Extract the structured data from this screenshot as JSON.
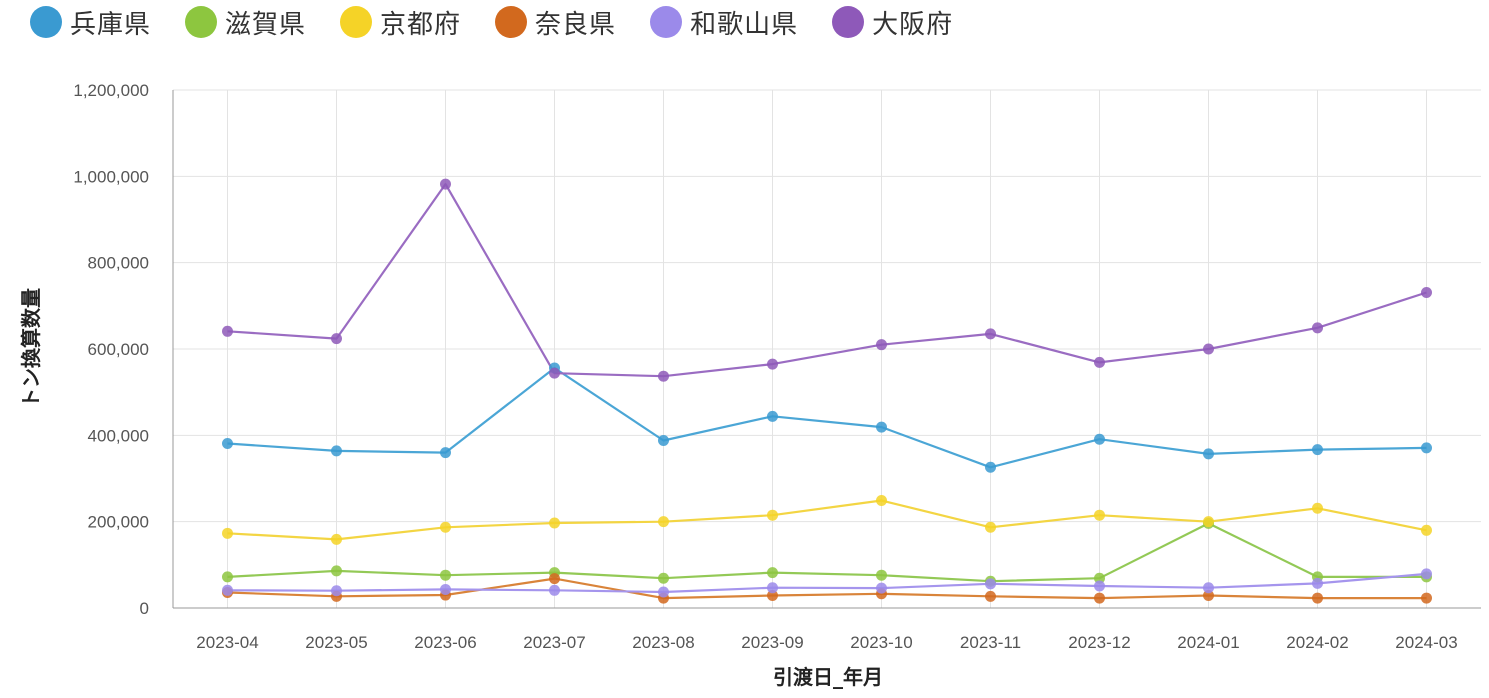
{
  "chart_data": {
    "type": "line",
    "title": "",
    "xlabel": "引渡日_年月",
    "ylabel": "トン換算数量",
    "ylim": [
      0,
      1200000
    ],
    "yticks": [
      0,
      200000,
      400000,
      600000,
      800000,
      1000000,
      1200000
    ],
    "ytick_labels": [
      "0",
      "200,000",
      "400,000",
      "600,000",
      "800,000",
      "1,000,000",
      "1,200,000"
    ],
    "grid": true,
    "legend_position": "top-left",
    "categories": [
      "2023-04",
      "2023-05",
      "2023-06",
      "2023-07",
      "2023-08",
      "2023-09",
      "2023-10",
      "2023-11",
      "2023-12",
      "2024-01",
      "2024-02",
      "2024-03"
    ],
    "series": [
      {
        "name": "兵庫県",
        "color": "#4BA6D6",
        "marker": "#3A9AD1",
        "values": [
          381000,
          364000,
          360000,
          556000,
          388000,
          444000,
          419000,
          326000,
          391000,
          357000,
          367000,
          371000
        ]
      },
      {
        "name": "滋賀県",
        "color": "#93C956",
        "marker": "#8DC63F",
        "values": [
          72000,
          86000,
          76000,
          82000,
          69000,
          82000,
          76000,
          62000,
          69000,
          196000,
          72000,
          72000
        ]
      },
      {
        "name": "京都府",
        "color": "#F3D543",
        "marker": "#F5D327",
        "values": [
          173000,
          159000,
          187000,
          197000,
          200000,
          215000,
          249000,
          187000,
          215000,
          200000,
          231000,
          180000
        ]
      },
      {
        "name": "奈良県",
        "color": "#D9843A",
        "marker": "#D2691E",
        "values": [
          36000,
          27000,
          30000,
          68000,
          23000,
          29000,
          33000,
          27000,
          23000,
          29000,
          23000,
          23000
        ]
      },
      {
        "name": "和歌山県",
        "color": "#A595ED",
        "marker": "#9B8AEA",
        "values": [
          41000,
          40000,
          43000,
          41000,
          37000,
          47000,
          46000,
          56000,
          51000,
          47000,
          57000,
          79000
        ]
      },
      {
        "name": "大阪府",
        "color": "#9A6CC2",
        "marker": "#8E59B9",
        "values": [
          641000,
          624000,
          982000,
          544000,
          537000,
          565000,
          610000,
          635000,
          569000,
          600000,
          649000,
          731000
        ]
      }
    ]
  }
}
